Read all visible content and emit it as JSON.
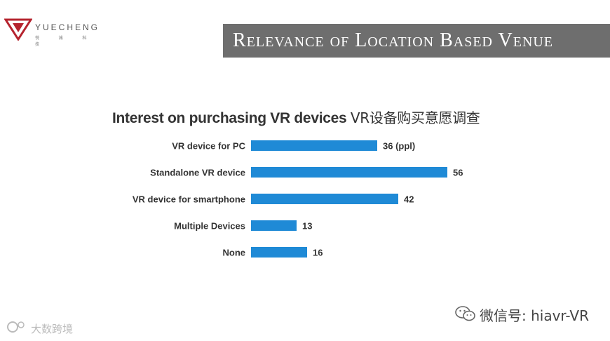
{
  "logo": {
    "name": "YUECHENG",
    "sub": "悦 诚 科 技",
    "accent": "#b5232e"
  },
  "header": {
    "title": "Relevance of Location Based Venue"
  },
  "chart_data": {
    "type": "bar",
    "orientation": "horizontal",
    "title": "Interest on purchasing VR devices",
    "title_cn": "VR设备购买意愿调查",
    "categories": [
      "VR device for PC",
      "Standalone VR device",
      "VR device for smartphone",
      "Multiple Devices",
      "None"
    ],
    "values": [
      36,
      56,
      42,
      13,
      16
    ],
    "value_labels": [
      "36 (ppl)",
      "56",
      "42",
      "13",
      "16"
    ],
    "bar_color": "#1f8ad6",
    "xlim": [
      0,
      56
    ],
    "grid": false,
    "legend": "none"
  },
  "footer": {
    "wechat": "微信号: hiavr-VR",
    "watermark": "大数跨境"
  }
}
